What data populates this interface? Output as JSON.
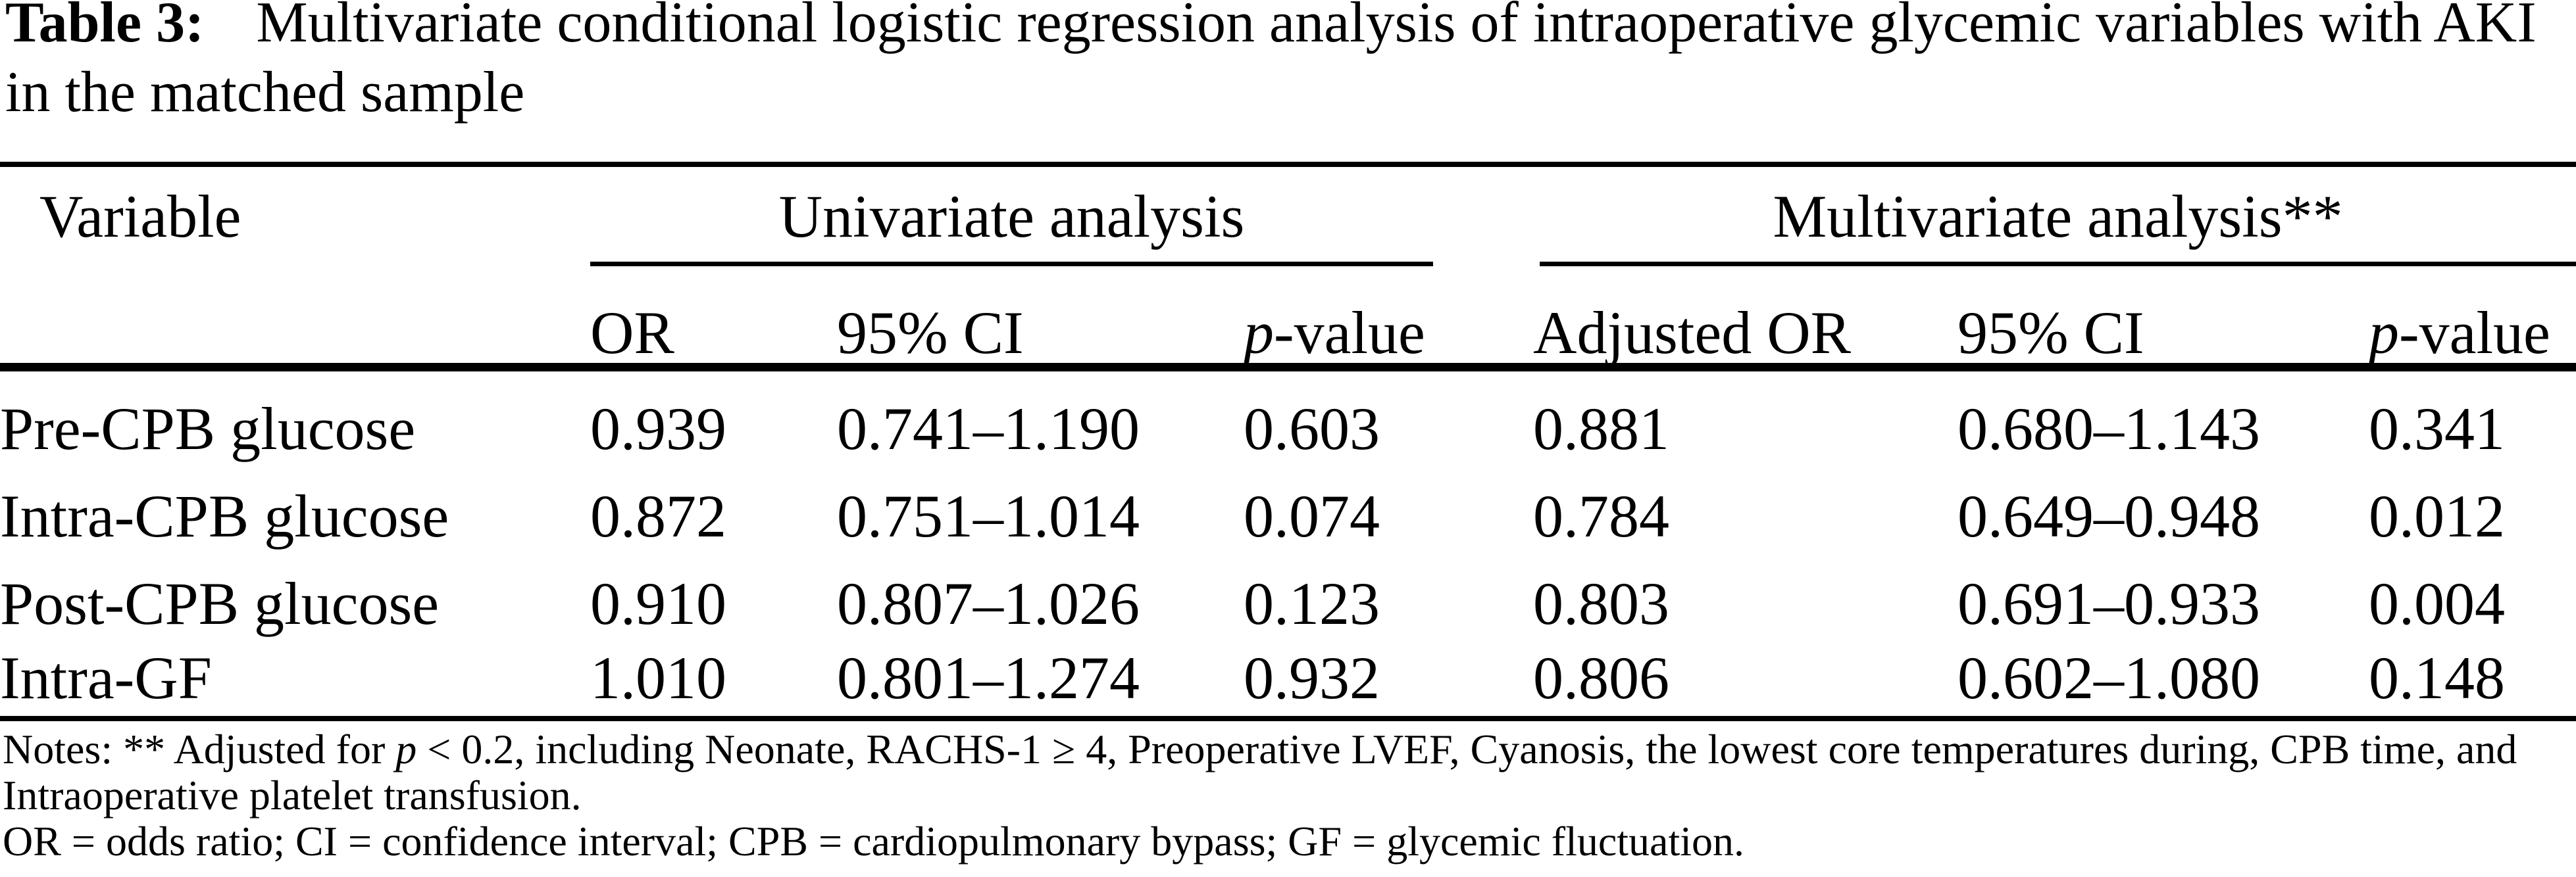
{
  "caption": {
    "label": "Table 3:",
    "line1_rest": "Multivariate conditional logistic regression analysis of intraoperative glycemic variables with AKI",
    "line2": "in the matched sample"
  },
  "table": {
    "variable_header": "Variable",
    "groups": {
      "univariate": "Univariate analysis",
      "multivariate": "Multivariate analysis**"
    },
    "subheaders": {
      "or": "OR",
      "ci": "95% CI",
      "p": "p",
      "p_suffix": "-value",
      "adjusted_or": "Adjusted OR"
    },
    "rows": [
      {
        "variable": "Pre-CPB glucose",
        "univariate": {
          "or": "0.939",
          "ci": "0.741–1.190",
          "p": "0.603"
        },
        "multivariate": {
          "adjusted_or": "0.881",
          "ci": "0.680–1.143",
          "p": "0.341"
        }
      },
      {
        "variable": "Intra-CPB glucose",
        "univariate": {
          "or": "0.872",
          "ci": "0.751–1.014",
          "p": "0.074"
        },
        "multivariate": {
          "adjusted_or": "0.784",
          "ci": "0.649–0.948",
          "p": "0.012"
        }
      },
      {
        "variable": "Post-CPB glucose",
        "univariate": {
          "or": "0.910",
          "ci": "0.807–1.026",
          "p": "0.123"
        },
        "multivariate": {
          "adjusted_or": "0.803",
          "ci": "0.691–0.933",
          "p": "0.004"
        }
      },
      {
        "variable": "Intra-GF",
        "univariate": {
          "or": "1.010",
          "ci": "0.801–1.274",
          "p": "0.932"
        },
        "multivariate": {
          "adjusted_or": "0.806",
          "ci": "0.602–1.080",
          "p": "0.148"
        }
      }
    ]
  },
  "notes": {
    "line1_prefix": "Notes: ** Adjusted for ",
    "line1_italic": "p",
    "line1_rest": " < 0.2, including Neonate, RACHS-1 ≥ 4, Preoperative LVEF, Cyanosis, the lowest core temperatures during, CPB time, and",
    "line2": "Intraoperative platelet transfusion.",
    "line3": "OR = odds ratio; CI = confidence interval; CPB = cardiopulmonary bypass; GF = glycemic fluctuation."
  },
  "colors": {
    "background": "#ffffff",
    "text": "#000000",
    "rule": "#000000"
  }
}
